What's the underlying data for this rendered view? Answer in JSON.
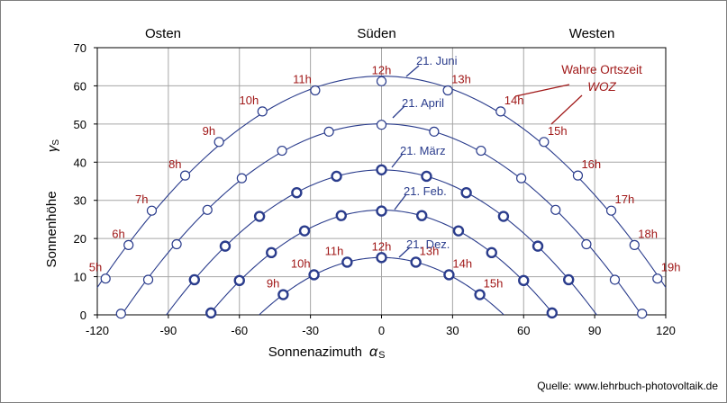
{
  "chart_data": {
    "type": "line",
    "xlabel": "Sonnenazimuth",
    "xlabel_symbol": "α",
    "xlabel_sub": "S",
    "ylabel": "Sonnenhöhe",
    "ylabel_symbol": "γ",
    "ylabel_sub": "S",
    "xlim": [
      -120,
      120
    ],
    "ylim": [
      0,
      70
    ],
    "xticks": [
      "-120",
      "-90",
      "-60",
      "-30",
      "0",
      "30",
      "60",
      "90",
      "120"
    ],
    "yticks": [
      "0",
      "10",
      "20",
      "30",
      "40",
      "50",
      "60",
      "70"
    ],
    "grid": true,
    "directions": [
      "Osten",
      "Süden",
      "Westen"
    ],
    "woz_label_line1": "Wahre Ortszeit",
    "woz_label_line2": "WOZ",
    "source": "Quelle: www.lehrbuch-photovoltaik.de",
    "series": [
      {
        "name": "21. Juni",
        "color": "#2a3c8c",
        "points": [
          {
            "x": -116.5,
            "y": 9.5,
            "hour": "5h"
          },
          {
            "x": -106.8,
            "y": 18.3,
            "hour": "6h"
          },
          {
            "x": -97.0,
            "y": 27.3,
            "hour": "7h"
          },
          {
            "x": -82.9,
            "y": 36.5,
            "hour": "8h"
          },
          {
            "x": -68.6,
            "y": 45.3,
            "hour": "9h"
          },
          {
            "x": -50.3,
            "y": 53.3,
            "hour": "10h"
          },
          {
            "x": -28.0,
            "y": 58.8,
            "hour": "11h"
          },
          {
            "x": 0.0,
            "y": 61.2,
            "hour": "12h"
          },
          {
            "x": 28.0,
            "y": 58.8,
            "hour": "13h"
          },
          {
            "x": 50.3,
            "y": 53.3,
            "hour": "14h"
          },
          {
            "x": 68.6,
            "y": 45.3,
            "hour": "15h"
          },
          {
            "x": 82.9,
            "y": 36.5,
            "hour": "16h"
          },
          {
            "x": 97.0,
            "y": 27.3,
            "hour": "17h"
          },
          {
            "x": 106.8,
            "y": 18.3,
            "hour": "18h"
          },
          {
            "x": 116.5,
            "y": 9.5,
            "hour": "19h"
          }
        ]
      },
      {
        "name": "21. April",
        "color": "#2a3c8c",
        "points": [
          {
            "x": -110.0,
            "y": 0.3
          },
          {
            "x": -98.5,
            "y": 9.2
          },
          {
            "x": -86.5,
            "y": 18.5
          },
          {
            "x": -73.5,
            "y": 27.5
          },
          {
            "x": -59.0,
            "y": 35.8
          },
          {
            "x": -42.0,
            "y": 43.0
          },
          {
            "x": -22.2,
            "y": 48.0
          },
          {
            "x": 0.0,
            "y": 49.8
          },
          {
            "x": 22.2,
            "y": 48.0
          },
          {
            "x": 42.0,
            "y": 43.0
          },
          {
            "x": 59.0,
            "y": 35.8
          },
          {
            "x": 73.5,
            "y": 27.5
          },
          {
            "x": 86.5,
            "y": 18.5
          },
          {
            "x": 98.5,
            "y": 9.2
          },
          {
            "x": 110.0,
            "y": 0.3
          }
        ]
      },
      {
        "name": "21. März",
        "color": "#2a3c8c",
        "points": [
          {
            "x": -79.0,
            "y": 9.2
          },
          {
            "x": -66.0,
            "y": 18.0
          },
          {
            "x": -51.5,
            "y": 25.8
          },
          {
            "x": -35.8,
            "y": 32.0
          },
          {
            "x": -19.0,
            "y": 36.3
          },
          {
            "x": 0.0,
            "y": 38.0
          },
          {
            "x": 19.0,
            "y": 36.3
          },
          {
            "x": 35.8,
            "y": 32.0
          },
          {
            "x": 51.5,
            "y": 25.8
          },
          {
            "x": 66.0,
            "y": 18.0
          },
          {
            "x": 79.0,
            "y": 9.2
          }
        ]
      },
      {
        "name": "21. Feb.",
        "color": "#2a3c8c",
        "points": [
          {
            "x": -72.0,
            "y": 0.5
          },
          {
            "x": -60.0,
            "y": 9.0
          },
          {
            "x": -46.5,
            "y": 16.3
          },
          {
            "x": -32.5,
            "y": 22.0
          },
          {
            "x": -17.0,
            "y": 26.0
          },
          {
            "x": 0.0,
            "y": 27.2
          },
          {
            "x": 17.0,
            "y": 26.0
          },
          {
            "x": 32.5,
            "y": 22.0
          },
          {
            "x": 46.5,
            "y": 16.3
          },
          {
            "x": 60.0,
            "y": 9.0
          },
          {
            "x": 72.0,
            "y": 0.5
          }
        ]
      },
      {
        "name": "21. Dez.",
        "color": "#2a3c8c",
        "points": [
          {
            "x": -41.5,
            "y": 5.3,
            "hour": "9h"
          },
          {
            "x": -28.5,
            "y": 10.5,
            "hour": "10h"
          },
          {
            "x": -14.5,
            "y": 13.8,
            "hour": "11h"
          },
          {
            "x": 0.0,
            "y": 15.0,
            "hour": "12h"
          },
          {
            "x": 14.5,
            "y": 13.8,
            "hour": "13h"
          },
          {
            "x": 28.5,
            "y": 10.5,
            "hour": "14h"
          },
          {
            "x": 41.5,
            "y": 5.3,
            "hour": "15h"
          }
        ]
      }
    ]
  }
}
